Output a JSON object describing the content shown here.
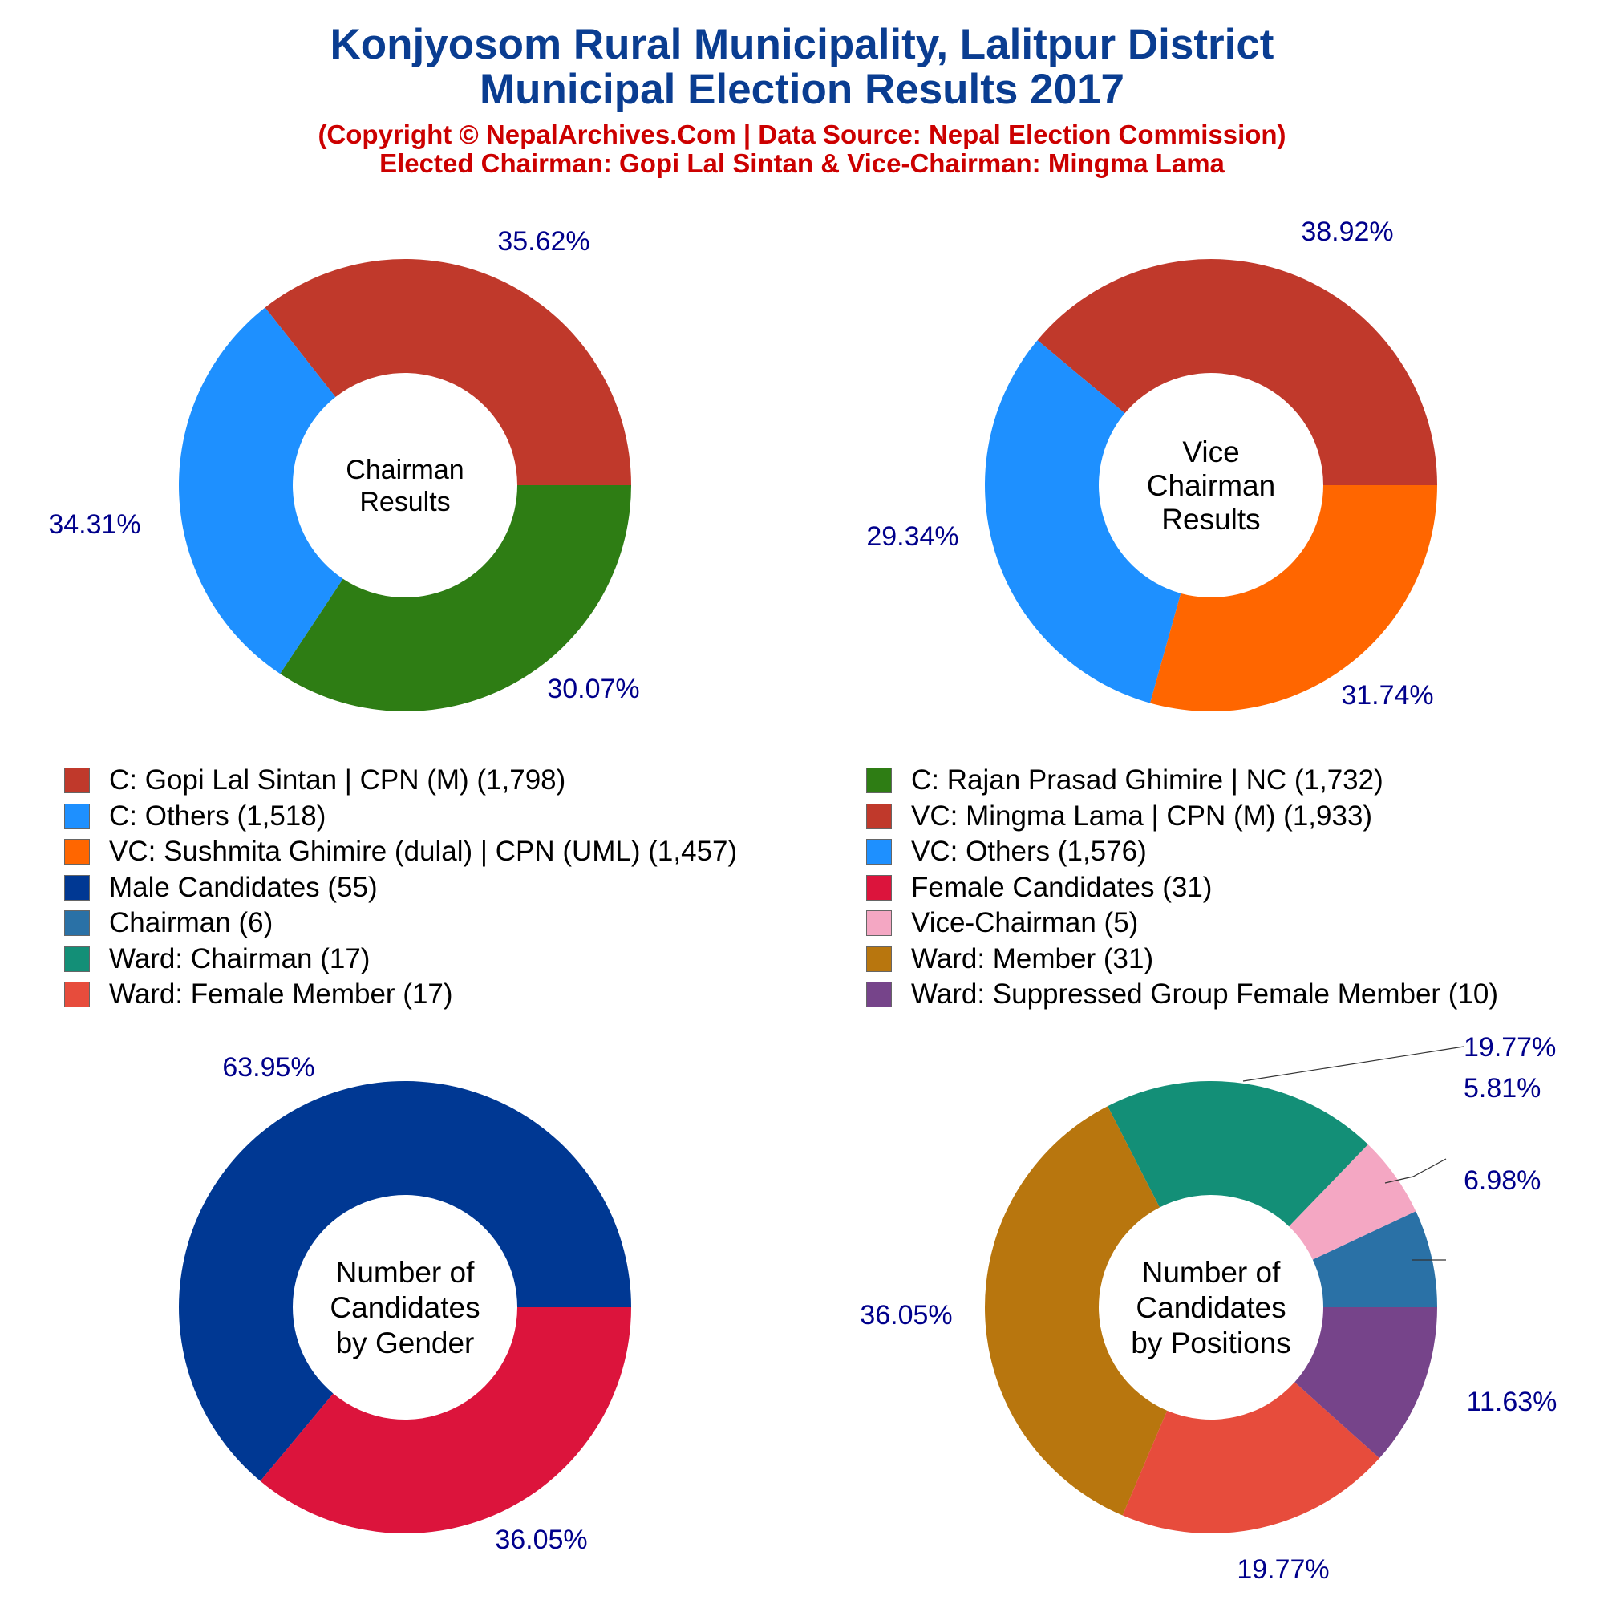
{
  "header": {
    "title1": "Konjyosom Rural Municipality, Lalitpur District",
    "title2": "Municipal Election Results 2017",
    "sub1": "(Copyright © NepalArchives.Com | Data Source: Nepal Election Commission)",
    "sub2": "Elected Chairman: Gopi Lal Sintan & Vice-Chairman: Mingma Lama"
  },
  "chart_data": [
    {
      "type": "pie",
      "center_label": [
        "Chairman",
        "Results"
      ],
      "labels": [
        "C: Gopi Lal Sintan | CPN (M)",
        "C: Others",
        "C: Rajan Prasad Ghimire | NC"
      ],
      "values": [
        1798,
        1518,
        1732
      ],
      "percent_labels": [
        "35.62%",
        "30.07%",
        "34.31%"
      ],
      "colors": [
        "#c0392b",
        "#1e90ff",
        "#2e7d14"
      ]
    },
    {
      "type": "pie",
      "center_label": [
        "Vice",
        "Chairman",
        "Results"
      ],
      "labels": [
        "VC: Mingma Lama | CPN (M)",
        "VC: Others",
        "VC: Sushmita Ghimire (dulal) | CPN (UML)"
      ],
      "values": [
        1933,
        1576,
        1457
      ],
      "percent_labels": [
        "38.92%",
        "31.74%",
        "29.34%"
      ],
      "colors": [
        "#c0392b",
        "#1e90ff",
        "#ff6600"
      ]
    },
    {
      "type": "pie",
      "center_label": [
        "Number of",
        "Candidates",
        "by Gender"
      ],
      "labels": [
        "Male Candidates",
        "Female Candidates"
      ],
      "values": [
        55,
        31
      ],
      "percent_labels": [
        "63.95%",
        "36.05%"
      ],
      "colors": [
        "#003893",
        "#dc143c"
      ]
    },
    {
      "type": "pie",
      "center_label": [
        "Number of",
        "Candidates",
        "by Positions"
      ],
      "labels": [
        "Chairman",
        "Vice-Chairman",
        "Ward: Chairman",
        "Ward: Member",
        "Ward: Female Member",
        "Ward: Suppressed Group Female Member"
      ],
      "values": [
        6,
        5,
        17,
        31,
        17,
        10
      ],
      "percent_labels": [
        "6.98%",
        "5.81%",
        "19.77%",
        "36.05%",
        "19.77%",
        "11.63%"
      ],
      "colors": [
        "#2a71a6",
        "#f4a7c3",
        "#138f77",
        "#b8760e",
        "#e74c3c",
        "#76448a"
      ]
    }
  ],
  "legend": {
    "left": [
      {
        "label": "C: Gopi Lal Sintan | CPN (M) (1,798)",
        "color": "#c0392b"
      },
      {
        "label": "C: Others (1,518)",
        "color": "#1e90ff"
      },
      {
        "label": "VC: Sushmita Ghimire (dulal) | CPN (UML) (1,457)",
        "color": "#ff6600"
      },
      {
        "label": "Male Candidates (55)",
        "color": "#003893"
      },
      {
        "label": "Chairman (6)",
        "color": "#2a71a6"
      },
      {
        "label": "Ward: Chairman (17)",
        "color": "#138f77"
      },
      {
        "label": "Ward: Female Member (17)",
        "color": "#e74c3c"
      }
    ],
    "right": [
      {
        "label": "C: Rajan Prasad Ghimire | NC (1,732)",
        "color": "#2e7d14"
      },
      {
        "label": "VC: Mingma Lama | CPN (M) (1,933)",
        "color": "#c0392b"
      },
      {
        "label": "VC: Others (1,576)",
        "color": "#1e90ff"
      },
      {
        "label": "Female Candidates (31)",
        "color": "#dc143c"
      },
      {
        "label": "Vice-Chairman (5)",
        "color": "#f4a7c3"
      },
      {
        "label": "Ward: Member (31)",
        "color": "#b8760e"
      },
      {
        "label": "Ward: Suppressed Group Female Member (10)",
        "color": "#76448a"
      }
    ]
  }
}
